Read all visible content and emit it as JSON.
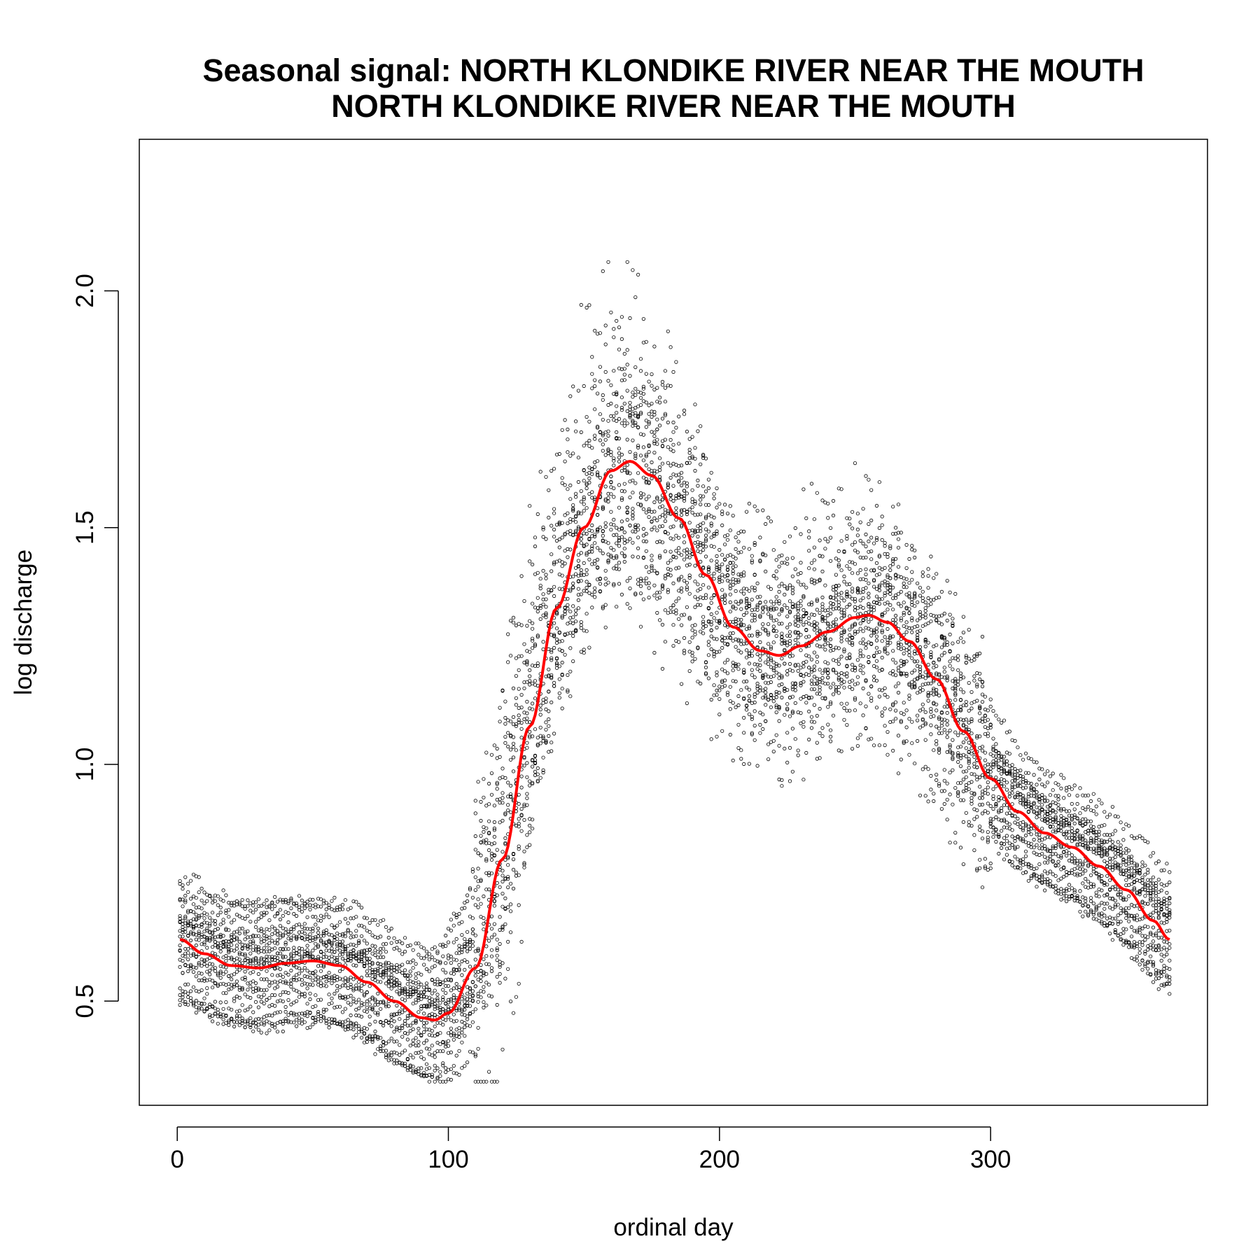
{
  "chart_data": {
    "type": "scatter",
    "title_lines": [
      "Seasonal signal: NORTH KLONDIKE RIVER NEAR THE MOUTH",
      "NORTH KLONDIKE RIVER NEAR THE MOUTH"
    ],
    "xlabel": "ordinal day",
    "ylabel": "log discharge",
    "xlim": [
      -14,
      380
    ],
    "ylim": [
      0.28,
      2.32
    ],
    "x_ticks": [
      0,
      100,
      200,
      300
    ],
    "x_tick_labels": [
      "0",
      "100",
      "200",
      "300"
    ],
    "y_ticks": [
      0.5,
      1.0,
      1.5,
      2.0
    ],
    "y_tick_labels": [
      "0.5",
      "1.0",
      "1.5",
      "2.0"
    ],
    "grid": false,
    "colors": {
      "points": "#000000",
      "smooth": "#ff0000"
    },
    "series": [
      {
        "kind": "points",
        "description_free": true,
        "x_range": [
          1,
          366
        ]
      },
      {
        "kind": "smooth-line",
        "x": [
          1,
          10,
          20,
          30,
          40,
          50,
          60,
          70,
          80,
          90,
          95,
          100,
          110,
          120,
          130,
          140,
          150,
          160,
          167,
          175,
          185,
          195,
          205,
          215,
          222,
          230,
          240,
          250,
          255,
          262,
          270,
          280,
          290,
          300,
          310,
          320,
          330,
          340,
          350,
          360,
          366
        ],
        "values": [
          0.63,
          0.6,
          0.575,
          0.57,
          0.58,
          0.585,
          0.575,
          0.54,
          0.5,
          0.465,
          0.46,
          0.475,
          0.57,
          0.8,
          1.08,
          1.33,
          1.5,
          1.62,
          1.64,
          1.61,
          1.52,
          1.4,
          1.29,
          1.24,
          1.23,
          1.25,
          1.28,
          1.31,
          1.315,
          1.3,
          1.26,
          1.18,
          1.07,
          0.97,
          0.9,
          0.855,
          0.825,
          0.785,
          0.735,
          0.67,
          0.63
        ]
      }
    ]
  }
}
